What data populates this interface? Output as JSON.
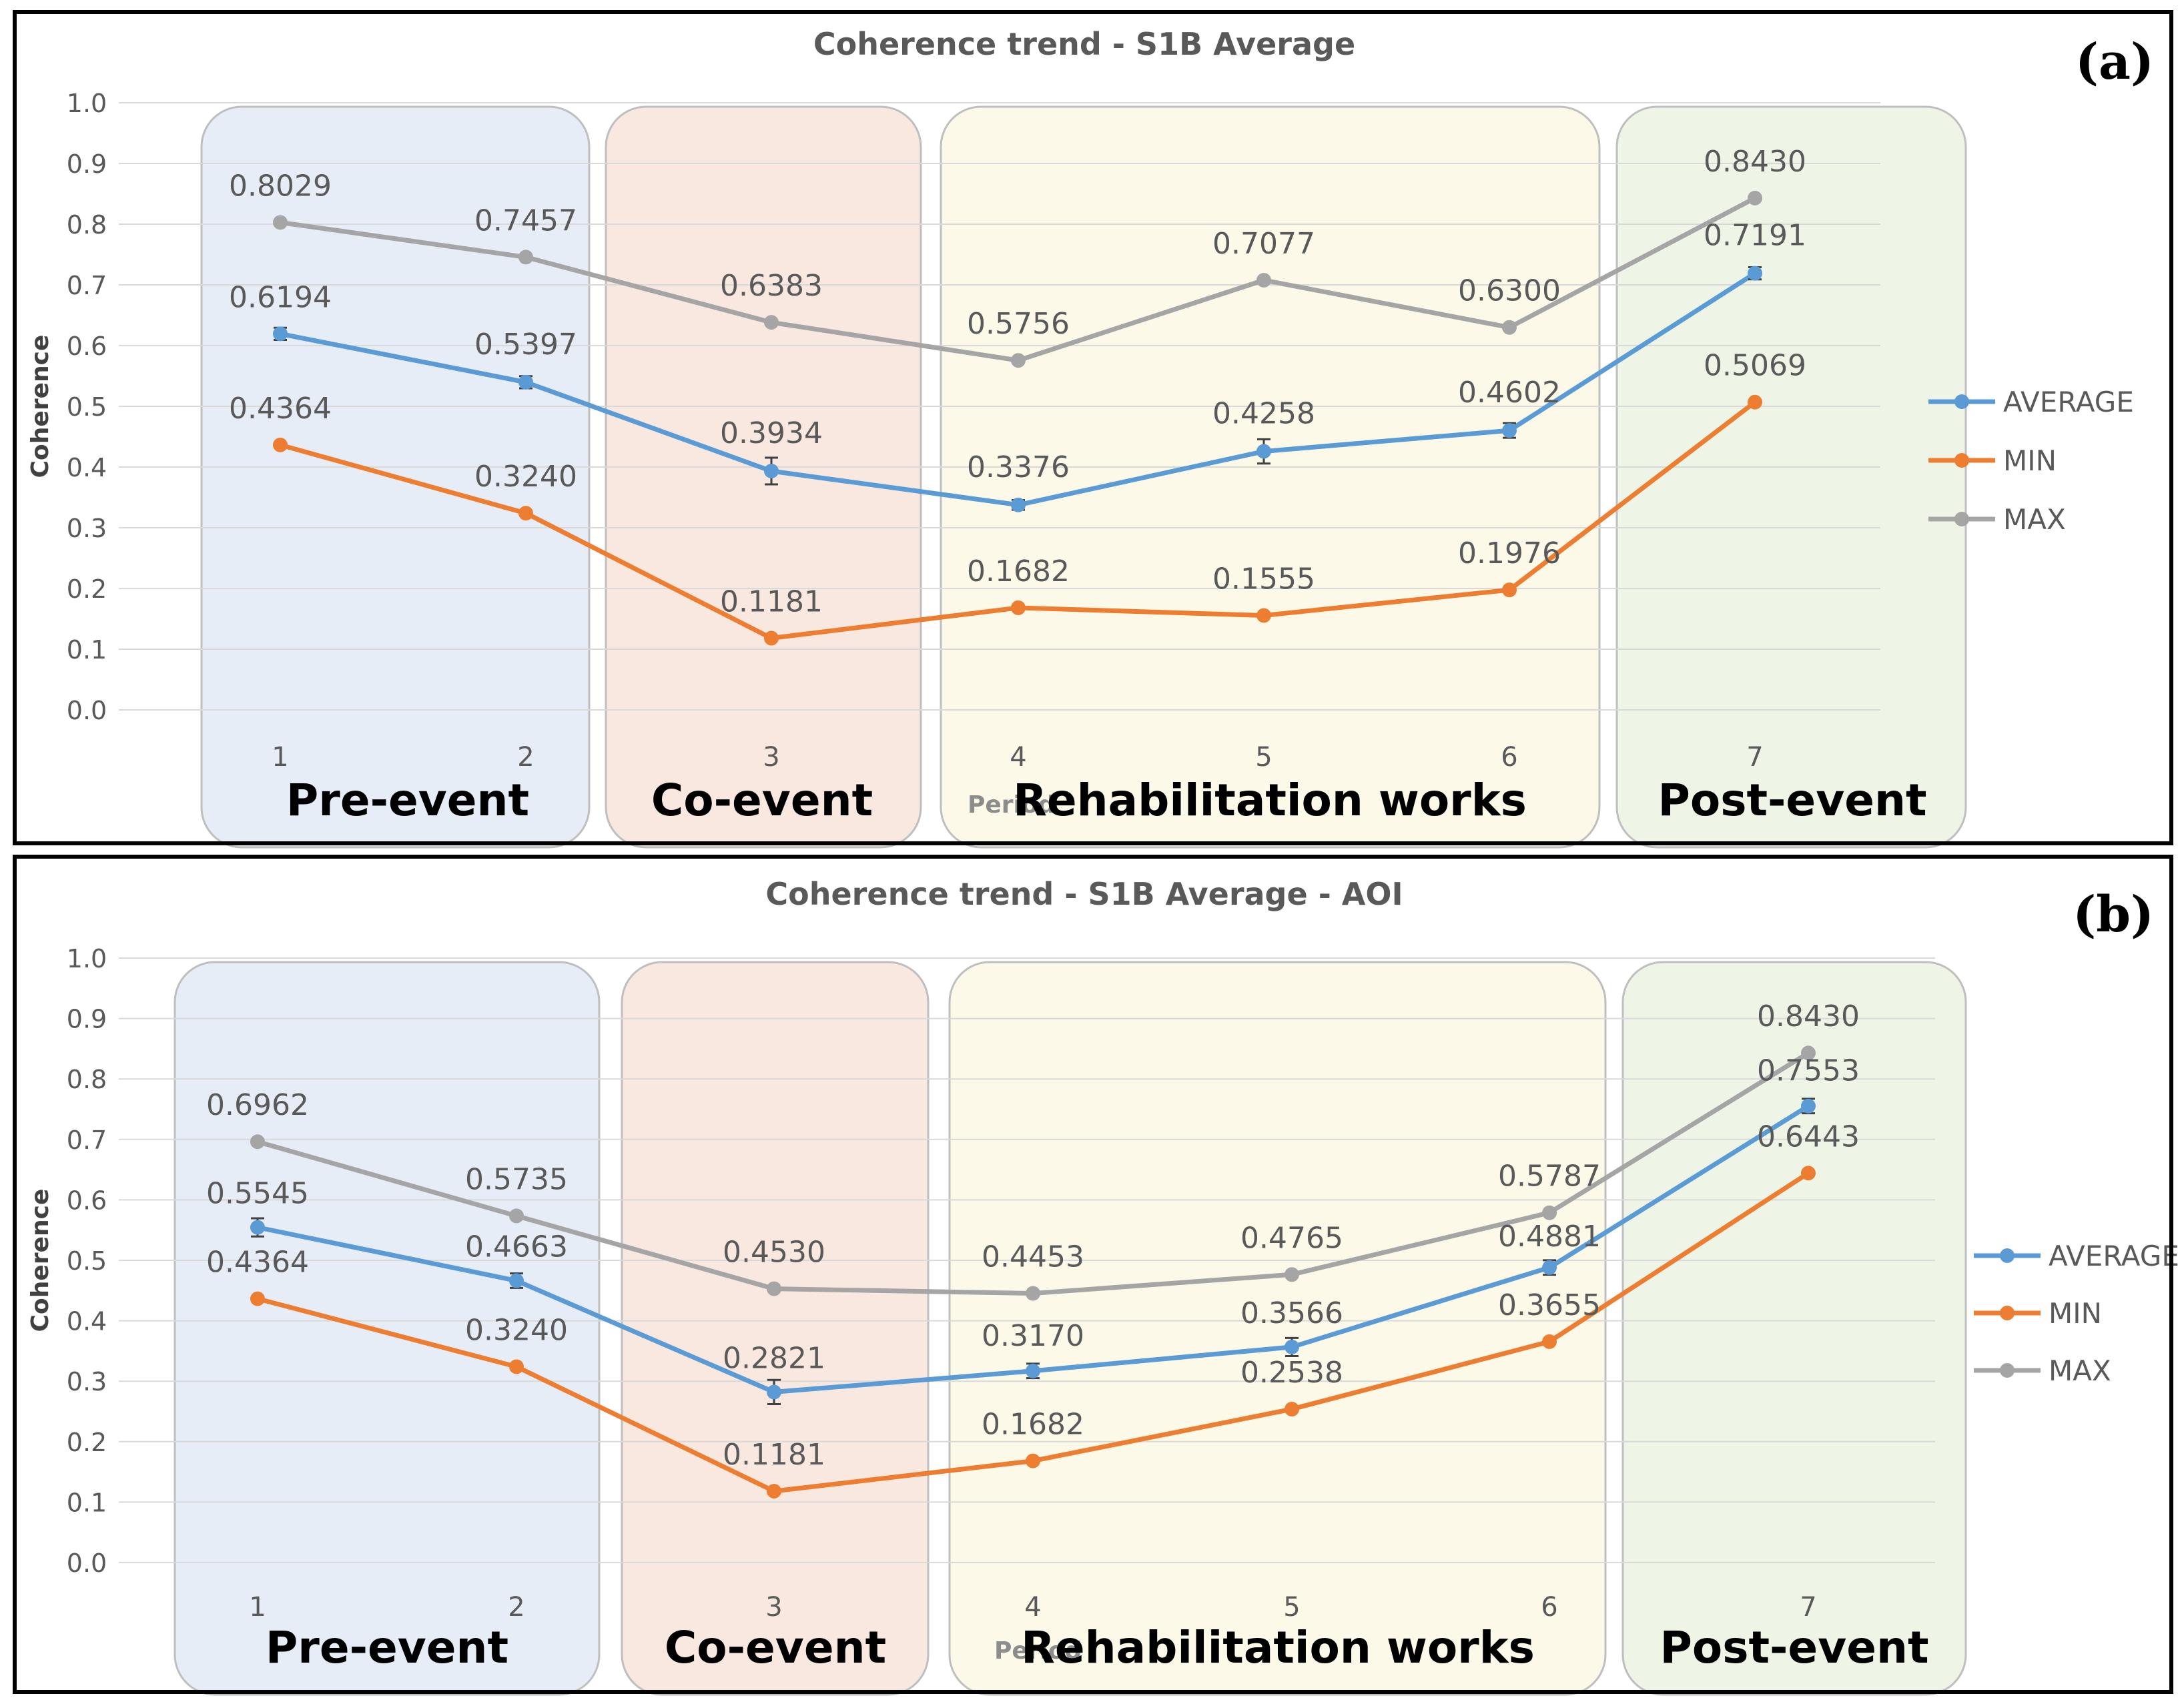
{
  "colors": {
    "average": "#5B9BD5",
    "min": "#ED7D31",
    "max": "#A5A5A5",
    "grid": "#D9D9D9",
    "text": "#595959",
    "frame": "#000000",
    "phases": {
      "pre": "#E6EDF7",
      "co": "#F8E8E0",
      "rehab": "#FDF9E9",
      "post": "#EEF5E7"
    }
  },
  "chart_data": [
    {
      "type": "line",
      "panel_label": "(a)",
      "title": "Coherence trend - S1B Average",
      "xlabel": "Period",
      "ylabel": "Coherence",
      "ylim": [
        0,
        1
      ],
      "yticks": [
        "0.0",
        "0.1",
        "0.2",
        "0.3",
        "0.4",
        "0.5",
        "0.6",
        "0.7",
        "0.8",
        "0.9",
        "1.0"
      ],
      "categories": [
        "1",
        "2",
        "3",
        "4",
        "5",
        "6",
        "7"
      ],
      "legend_position": "right",
      "phases": [
        {
          "key": "pre",
          "label": "Pre-event",
          "from": 1,
          "to": 2
        },
        {
          "key": "co",
          "label": "Co-event",
          "from": 3,
          "to": 3
        },
        {
          "key": "rehab",
          "label": "Rehabilitation works",
          "from": 4,
          "to": 6
        },
        {
          "key": "post",
          "label": "Post-event",
          "from": 7,
          "to": 7
        }
      ],
      "series": [
        {
          "name": "AVERAGE",
          "key": "average",
          "values": [
            0.6194,
            0.5397,
            0.3934,
            0.3376,
            0.4258,
            0.4602,
            0.7191
          ],
          "labels": [
            "0.6194",
            "0.5397",
            "0.3934",
            "0.3376",
            "0.4258",
            "0.4602",
            "0.7191"
          ],
          "error": [
            0.01,
            0.01,
            0.022,
            0.008,
            0.02,
            0.012,
            0.01
          ]
        },
        {
          "name": "MIN",
          "key": "min",
          "values": [
            0.4364,
            0.324,
            0.1181,
            0.1682,
            0.1555,
            0.1976,
            0.5069
          ],
          "labels": [
            "0.4364",
            "0.3240",
            "0.1181",
            "0.1682",
            "0.1555",
            "0.1976",
            "0.5069"
          ]
        },
        {
          "name": "MAX",
          "key": "max",
          "values": [
            0.8029,
            0.7457,
            0.6383,
            0.5756,
            0.7077,
            0.63,
            0.843
          ],
          "labels": [
            "0.8029",
            "0.7457",
            "0.6383",
            "0.5756",
            "0.7077",
            "0.6300",
            "0.8430"
          ]
        }
      ]
    },
    {
      "type": "line",
      "panel_label": "(b)",
      "title": "Coherence trend - S1B Average - AOI",
      "xlabel": "Period",
      "ylabel": "Coherence",
      "ylim": [
        0,
        1
      ],
      "yticks": [
        "0.0",
        "0.1",
        "0.2",
        "0.3",
        "0.4",
        "0.5",
        "0.6",
        "0.7",
        "0.8",
        "0.9",
        "1.0"
      ],
      "categories": [
        "1",
        "2",
        "3",
        "4",
        "5",
        "6",
        "7"
      ],
      "legend_position": "right",
      "phases": [
        {
          "key": "pre",
          "label": "Pre-event",
          "from": 1,
          "to": 2
        },
        {
          "key": "co",
          "label": "Co-event",
          "from": 3,
          "to": 3
        },
        {
          "key": "rehab",
          "label": "Rehabilitation works",
          "from": 4,
          "to": 6
        },
        {
          "key": "post",
          "label": "Post-event",
          "from": 7,
          "to": 7
        }
      ],
      "series": [
        {
          "name": "AVERAGE",
          "key": "average",
          "values": [
            0.5545,
            0.4663,
            0.2821,
            0.317,
            0.3566,
            0.4881,
            0.7553
          ],
          "labels": [
            "0.5545",
            "0.4663",
            "0.2821",
            "0.3170",
            "0.3566",
            "0.4881",
            "0.7553"
          ],
          "error": [
            0.015,
            0.012,
            0.02,
            0.012,
            0.015,
            0.012,
            0.012
          ]
        },
        {
          "name": "MIN",
          "key": "min",
          "values": [
            0.4364,
            0.324,
            0.1181,
            0.1682,
            0.2538,
            0.3655,
            0.6443
          ],
          "labels": [
            "0.4364",
            "0.3240",
            "0.1181",
            "0.1682",
            "0.2538",
            "0.3655",
            "0.6443"
          ]
        },
        {
          "name": "MAX",
          "key": "max",
          "values": [
            0.6962,
            0.5735,
            0.453,
            0.4453,
            0.4765,
            0.5787,
            0.843
          ],
          "labels": [
            "0.6962",
            "0.5735",
            "0.4530",
            "0.4453",
            "0.4765",
            "0.5787",
            "0.8430"
          ]
        }
      ]
    }
  ]
}
